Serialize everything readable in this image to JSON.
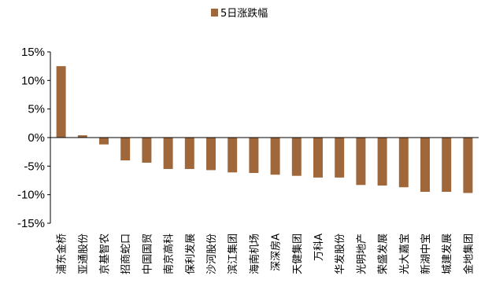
{
  "chart_data": {
    "type": "bar",
    "legend": {
      "position": "top",
      "entries": [
        "5日涨跌幅"
      ]
    },
    "series": [
      {
        "name": "5日涨跌幅",
        "color": "#A0683A",
        "values": [
          12.5,
          0.4,
          -1.2,
          -4.0,
          -4.4,
          -5.5,
          -5.5,
          -5.7,
          -6.1,
          -6.2,
          -6.5,
          -6.7,
          -7.0,
          -7.0,
          -8.3,
          -8.4,
          -8.7,
          -9.5,
          -9.5,
          -9.7
        ]
      }
    ],
    "categories": [
      "浦东金桥",
      "亚通股份",
      "京基智农",
      "招商蛇口",
      "中国国贸",
      "南京高科",
      "保利发展",
      "沙河股份",
      "滨江集团",
      "海南机场",
      "深深房A",
      "天健集团",
      "万科A",
      "华发股份",
      "光明地产",
      "荣盛发展",
      "光大嘉宝",
      "新湖中宝",
      "城建发展",
      "金地集团"
    ],
    "ylim": [
      -15,
      15
    ],
    "yticks": [
      15,
      10,
      5,
      0,
      -5,
      -10,
      -15
    ],
    "ytick_labels": [
      "15%",
      "10%",
      "5%",
      "0%",
      "-5%",
      "-10%",
      "-15%"
    ],
    "grid": false,
    "title": "",
    "xlabel": "",
    "ylabel": ""
  }
}
